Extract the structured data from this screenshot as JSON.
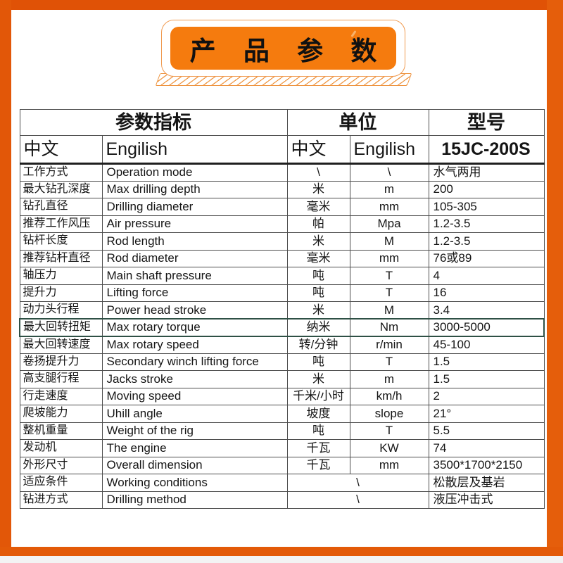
{
  "banner": {
    "title": "产 品 参 数"
  },
  "colors": {
    "frame_orange": "#E25708",
    "banner_orange": "#F57B0E",
    "banner_outline": "#F09A50",
    "hatch_stripe": "#EE9440",
    "table_border": "#4d4d4d",
    "selection_outline": "#2E5045"
  },
  "table": {
    "header": {
      "group_param": "参数指标",
      "group_unit": "单位",
      "group_model": "型号",
      "sub_param_cn": "中文",
      "sub_param_en": "Engilish",
      "sub_unit_cn": "中文",
      "sub_unit_en": "Engilish",
      "model_value": "15JC-200S"
    },
    "rows": [
      {
        "cn": "工作方式",
        "en": "Operation mode",
        "unit_cn": "\\",
        "unit_en": "\\",
        "value": "水气两用"
      },
      {
        "cn": "最大钻孔深度",
        "en": "Max drilling depth",
        "unit_cn": "米",
        "unit_en": "m",
        "value": "200"
      },
      {
        "cn": "钻孔直径",
        "en": "Drilling diameter",
        "unit_cn": "毫米",
        "unit_en": "mm",
        "value": "105-305"
      },
      {
        "cn": "推荐工作风压",
        "en": "Air pressure",
        "unit_cn": "帕",
        "unit_en": "Mpa",
        "value": "1.2-3.5"
      },
      {
        "cn": "钻杆长度",
        "en": "Rod length",
        "unit_cn": "米",
        "unit_en": "M",
        "value": "1.2-3.5"
      },
      {
        "cn": "推荐钻杆直径",
        "en": "Rod  diameter",
        "unit_cn": "毫米",
        "unit_en": "mm",
        "value": "76或89"
      },
      {
        "cn": "轴压力",
        "en": "Main shaft  pressure",
        "unit_cn": "吨",
        "unit_en": "T",
        "value": "4"
      },
      {
        "cn": "提升力",
        "en": "Lifting force",
        "unit_cn": "吨",
        "unit_en": "T",
        "value": "16"
      },
      {
        "cn": "动力头行程",
        "en": "Power head stroke",
        "unit_cn": "米",
        "unit_en": "M",
        "value": "3.4"
      },
      {
        "cn": "最大回转扭矩",
        "en": "Max rotary  torque",
        "unit_cn": "纳米",
        "unit_en": "Nm",
        "value": "3000-5000",
        "selected": true
      },
      {
        "cn": "最大回转速度",
        "en": "Max rotary speed",
        "unit_cn": "转/分钟",
        "unit_en": "r/min",
        "value": "45-100"
      },
      {
        "cn": "卷扬提升力",
        "en": "Secondary winch lifting force",
        "unit_cn": "吨",
        "unit_en": "T",
        "value": "1.5"
      },
      {
        "cn": "高支腿行程",
        "en": "Jacks stroke",
        "unit_cn": "米",
        "unit_en": "m",
        "value": "1.5"
      },
      {
        "cn": "行走速度",
        "en": "Moving speed",
        "unit_cn": "千米/小时",
        "unit_en": "km/h",
        "value": "2"
      },
      {
        "cn": "爬坡能力",
        "en": "Uhill angle",
        "unit_cn": "坡度",
        "unit_en": "slope",
        "value": "21°"
      },
      {
        "cn": "整机重量",
        "en": "Weight of the rig",
        "unit_cn": "吨",
        "unit_en": "T",
        "value": "5.5"
      },
      {
        "cn": "发动机",
        "en": "The engine",
        "unit_cn": "千瓦",
        "unit_en": "KW",
        "value": "74"
      },
      {
        "cn": "外形尺寸",
        "en": "Overall dimension",
        "unit_cn": "千瓦",
        "unit_en": "mm",
        "value": "3500*1700*2150"
      },
      {
        "cn": "适应条件",
        "en": "Working  conditions",
        "unit_merged": "\\",
        "value": "松散层及基岩"
      },
      {
        "cn": "钻进方式",
        "en": "Drilling method",
        "unit_merged": "\\",
        "value": "液压冲击式"
      }
    ]
  }
}
